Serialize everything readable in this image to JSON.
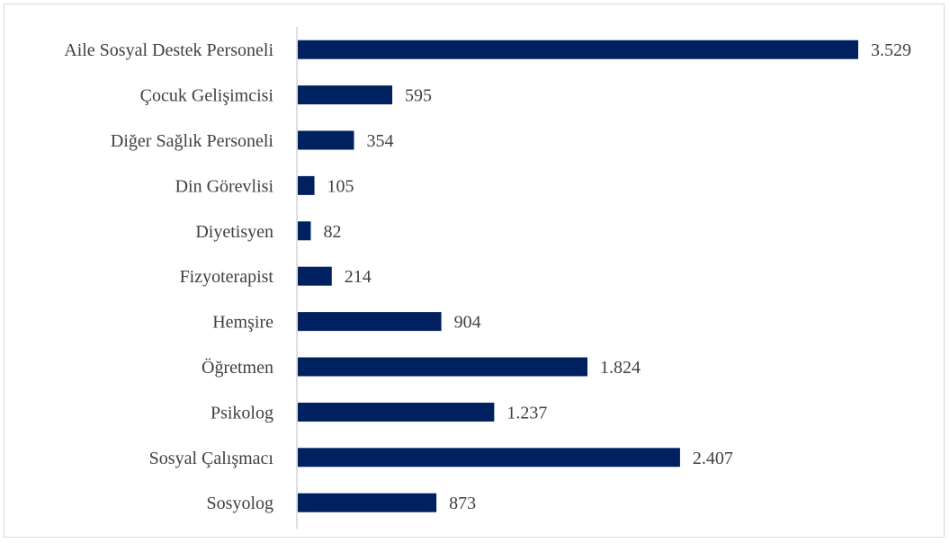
{
  "chart_data": {
    "type": "bar",
    "orientation": "horizontal",
    "categories": [
      "Aile Sosyal Destek Personeli",
      "Çocuk Gelişimcisi",
      "Diğer Sağlık Personeli",
      "Din Görevlisi",
      "Diyetisyen",
      "Fizyoterapist",
      "Hemşire",
      "Öğretmen",
      "Psikolog",
      "Sosyal Çalışmacı",
      "Sosyolog"
    ],
    "values": [
      3529,
      595,
      354,
      105,
      82,
      214,
      904,
      1824,
      1237,
      2407,
      873
    ],
    "value_labels": [
      "3.529",
      "595",
      "354",
      "105",
      "82",
      "214",
      "904",
      "1.824",
      "1.237",
      "2.407",
      "873"
    ],
    "title": "",
    "xlabel": "",
    "ylabel": "",
    "xlim": [
      0,
      3529
    ],
    "grid": false,
    "legend": "none",
    "bar_color": "#002060"
  }
}
